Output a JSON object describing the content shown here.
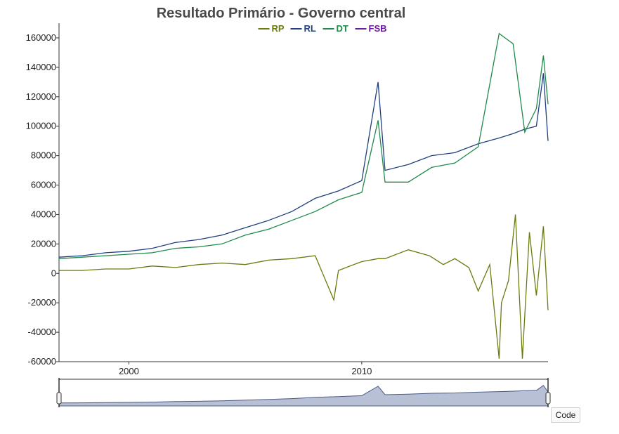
{
  "chart_data": {
    "type": "line",
    "title": "Resultado Primário - Governo central",
    "xlabel": "",
    "ylabel": "",
    "xlim": [
      1997.0,
      2018.0
    ],
    "ylim": [
      -60000,
      170000
    ],
    "yticks": [
      -60000,
      -40000,
      -20000,
      0,
      20000,
      40000,
      60000,
      80000,
      100000,
      120000,
      140000,
      160000
    ],
    "xticks": [
      2000,
      2010
    ],
    "legend_position": "top-center",
    "grid": false,
    "colors": {
      "RP": "#6b7a0f",
      "RL": "#1f3f7f",
      "DT": "#1e8a4a",
      "FSB": "#6a1b9a"
    },
    "series": [
      {
        "name": "RP",
        "x": [
          1997.0,
          1998.0,
          1999.0,
          2000.0,
          2001.0,
          2002.0,
          2003.0,
          2004.0,
          2005.0,
          2006.0,
          2007.0,
          2008.0,
          2008.8,
          2009.0,
          2010.0,
          2010.7,
          2011.0,
          2012.0,
          2012.9,
          2013.5,
          2014.0,
          2014.6,
          2015.0,
          2015.5,
          2015.9,
          2016.0,
          2016.3,
          2016.6,
          2016.9,
          2017.2,
          2017.5,
          2017.8,
          2018.0
        ],
        "values": [
          2000,
          2000,
          3000,
          3000,
          5000,
          4000,
          6000,
          7000,
          6000,
          9000,
          10000,
          12000,
          -18000,
          2000,
          8000,
          10000,
          10000,
          16000,
          12000,
          6000,
          10000,
          4000,
          -12000,
          6000,
          -58000,
          -20000,
          -5000,
          40000,
          -58000,
          28000,
          -15000,
          32000,
          -25000
        ]
      },
      {
        "name": "RL",
        "x": [
          1997.0,
          1998.0,
          1999.0,
          2000.0,
          2001.0,
          2002.0,
          2003.0,
          2004.0,
          2005.0,
          2006.0,
          2007.0,
          2008.0,
          2009.0,
          2010.0,
          2010.7,
          2011.0,
          2012.0,
          2013.0,
          2014.0,
          2015.0,
          2015.9,
          2016.5,
          2017.0,
          2017.5,
          2017.8,
          2018.0
        ],
        "values": [
          11000,
          12000,
          14000,
          15000,
          17000,
          21000,
          23000,
          26000,
          31000,
          36000,
          42000,
          51000,
          56000,
          63000,
          130000,
          70000,
          74000,
          80000,
          82000,
          88000,
          92000,
          95000,
          98000,
          100000,
          136000,
          90000
        ]
      },
      {
        "name": "DT",
        "x": [
          1997.0,
          1998.0,
          1999.0,
          2000.0,
          2001.0,
          2002.0,
          2003.0,
          2004.0,
          2005.0,
          2006.0,
          2007.0,
          2008.0,
          2009.0,
          2010.0,
          2010.7,
          2011.0,
          2012.0,
          2013.0,
          2014.0,
          2015.0,
          2015.9,
          2016.5,
          2017.0,
          2017.5,
          2017.8,
          2018.0
        ],
        "values": [
          10000,
          11000,
          12000,
          13000,
          14000,
          17000,
          18000,
          20000,
          26000,
          30000,
          36000,
          42000,
          50000,
          55000,
          104000,
          62000,
          62000,
          72000,
          75000,
          86000,
          163000,
          156000,
          96000,
          112000,
          148000,
          115000
        ]
      },
      {
        "name": "FSB",
        "x": [],
        "values": []
      }
    ]
  },
  "ui": {
    "code_button_label": "Code"
  }
}
